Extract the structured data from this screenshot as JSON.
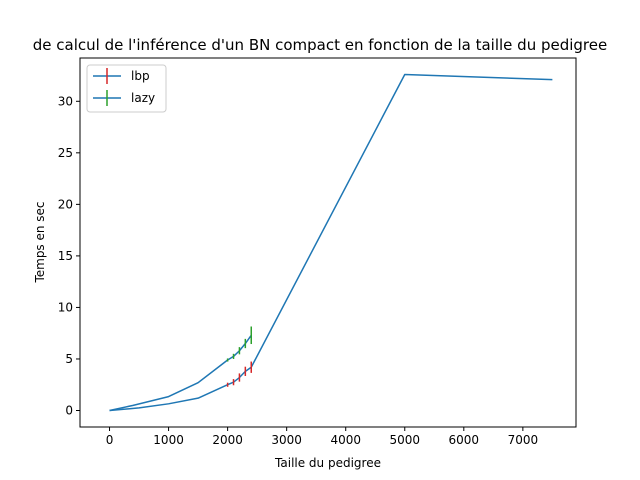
{
  "chart_data": {
    "type": "line",
    "title": "de calcul de l'inférence d'un BN compact en fonction de la taille du pedigree",
    "xlabel": "Taille du pedigree",
    "ylabel": "Temps en sec",
    "xlim": [
      -500,
      7900
    ],
    "ylim": [
      -1.6,
      34.2
    ],
    "xticks": [
      0,
      1000,
      2000,
      3000,
      4000,
      5000,
      6000,
      7000
    ],
    "yticks": [
      0,
      5,
      10,
      15,
      20,
      25,
      30
    ],
    "grid": false,
    "legend_position": "top-left",
    "series": [
      {
        "name": "lbp",
        "color": "#1f77b4",
        "errorbar_color": "#d62728",
        "x": [
          0,
          500,
          1000,
          1500,
          2000,
          2100,
          2200,
          2300,
          2400,
          5000,
          7500
        ],
        "y": [
          0,
          0.25,
          0.65,
          1.2,
          2.5,
          2.75,
          3.2,
          3.8,
          4.2,
          32.6,
          32.1
        ],
        "err": [
          null,
          null,
          null,
          null,
          0.2,
          0.3,
          0.4,
          0.45,
          0.55,
          null,
          null
        ]
      },
      {
        "name": "lazy",
        "color": "#1f77b4",
        "errorbar_color": "#2ca02c",
        "x": [
          0,
          400,
          1000,
          1500,
          2000,
          2100,
          2200,
          2300,
          2400
        ],
        "y": [
          0,
          0.5,
          1.35,
          2.7,
          4.9,
          5.25,
          5.8,
          6.5,
          7.3
        ],
        "err": [
          null,
          null,
          null,
          null,
          0.15,
          0.25,
          0.35,
          0.45,
          0.85
        ]
      }
    ]
  }
}
